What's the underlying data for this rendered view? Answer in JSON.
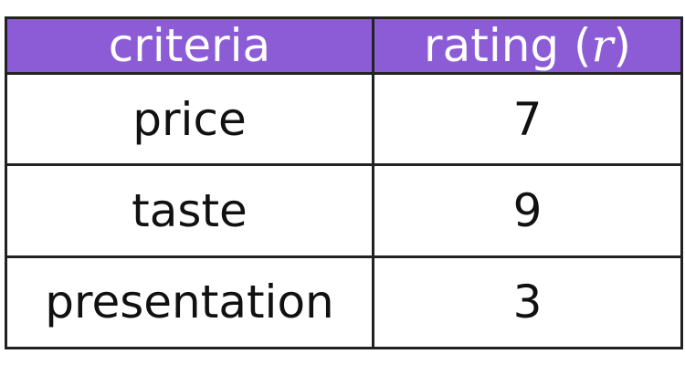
{
  "table": {
    "header": [
      "criteria",
      [
        "rating (",
        "r",
        ")"
      ]
    ],
    "rows": [
      [
        "price",
        "7"
      ],
      [
        "taste",
        "9"
      ],
      [
        "presentation",
        "3"
      ]
    ]
  }
}
